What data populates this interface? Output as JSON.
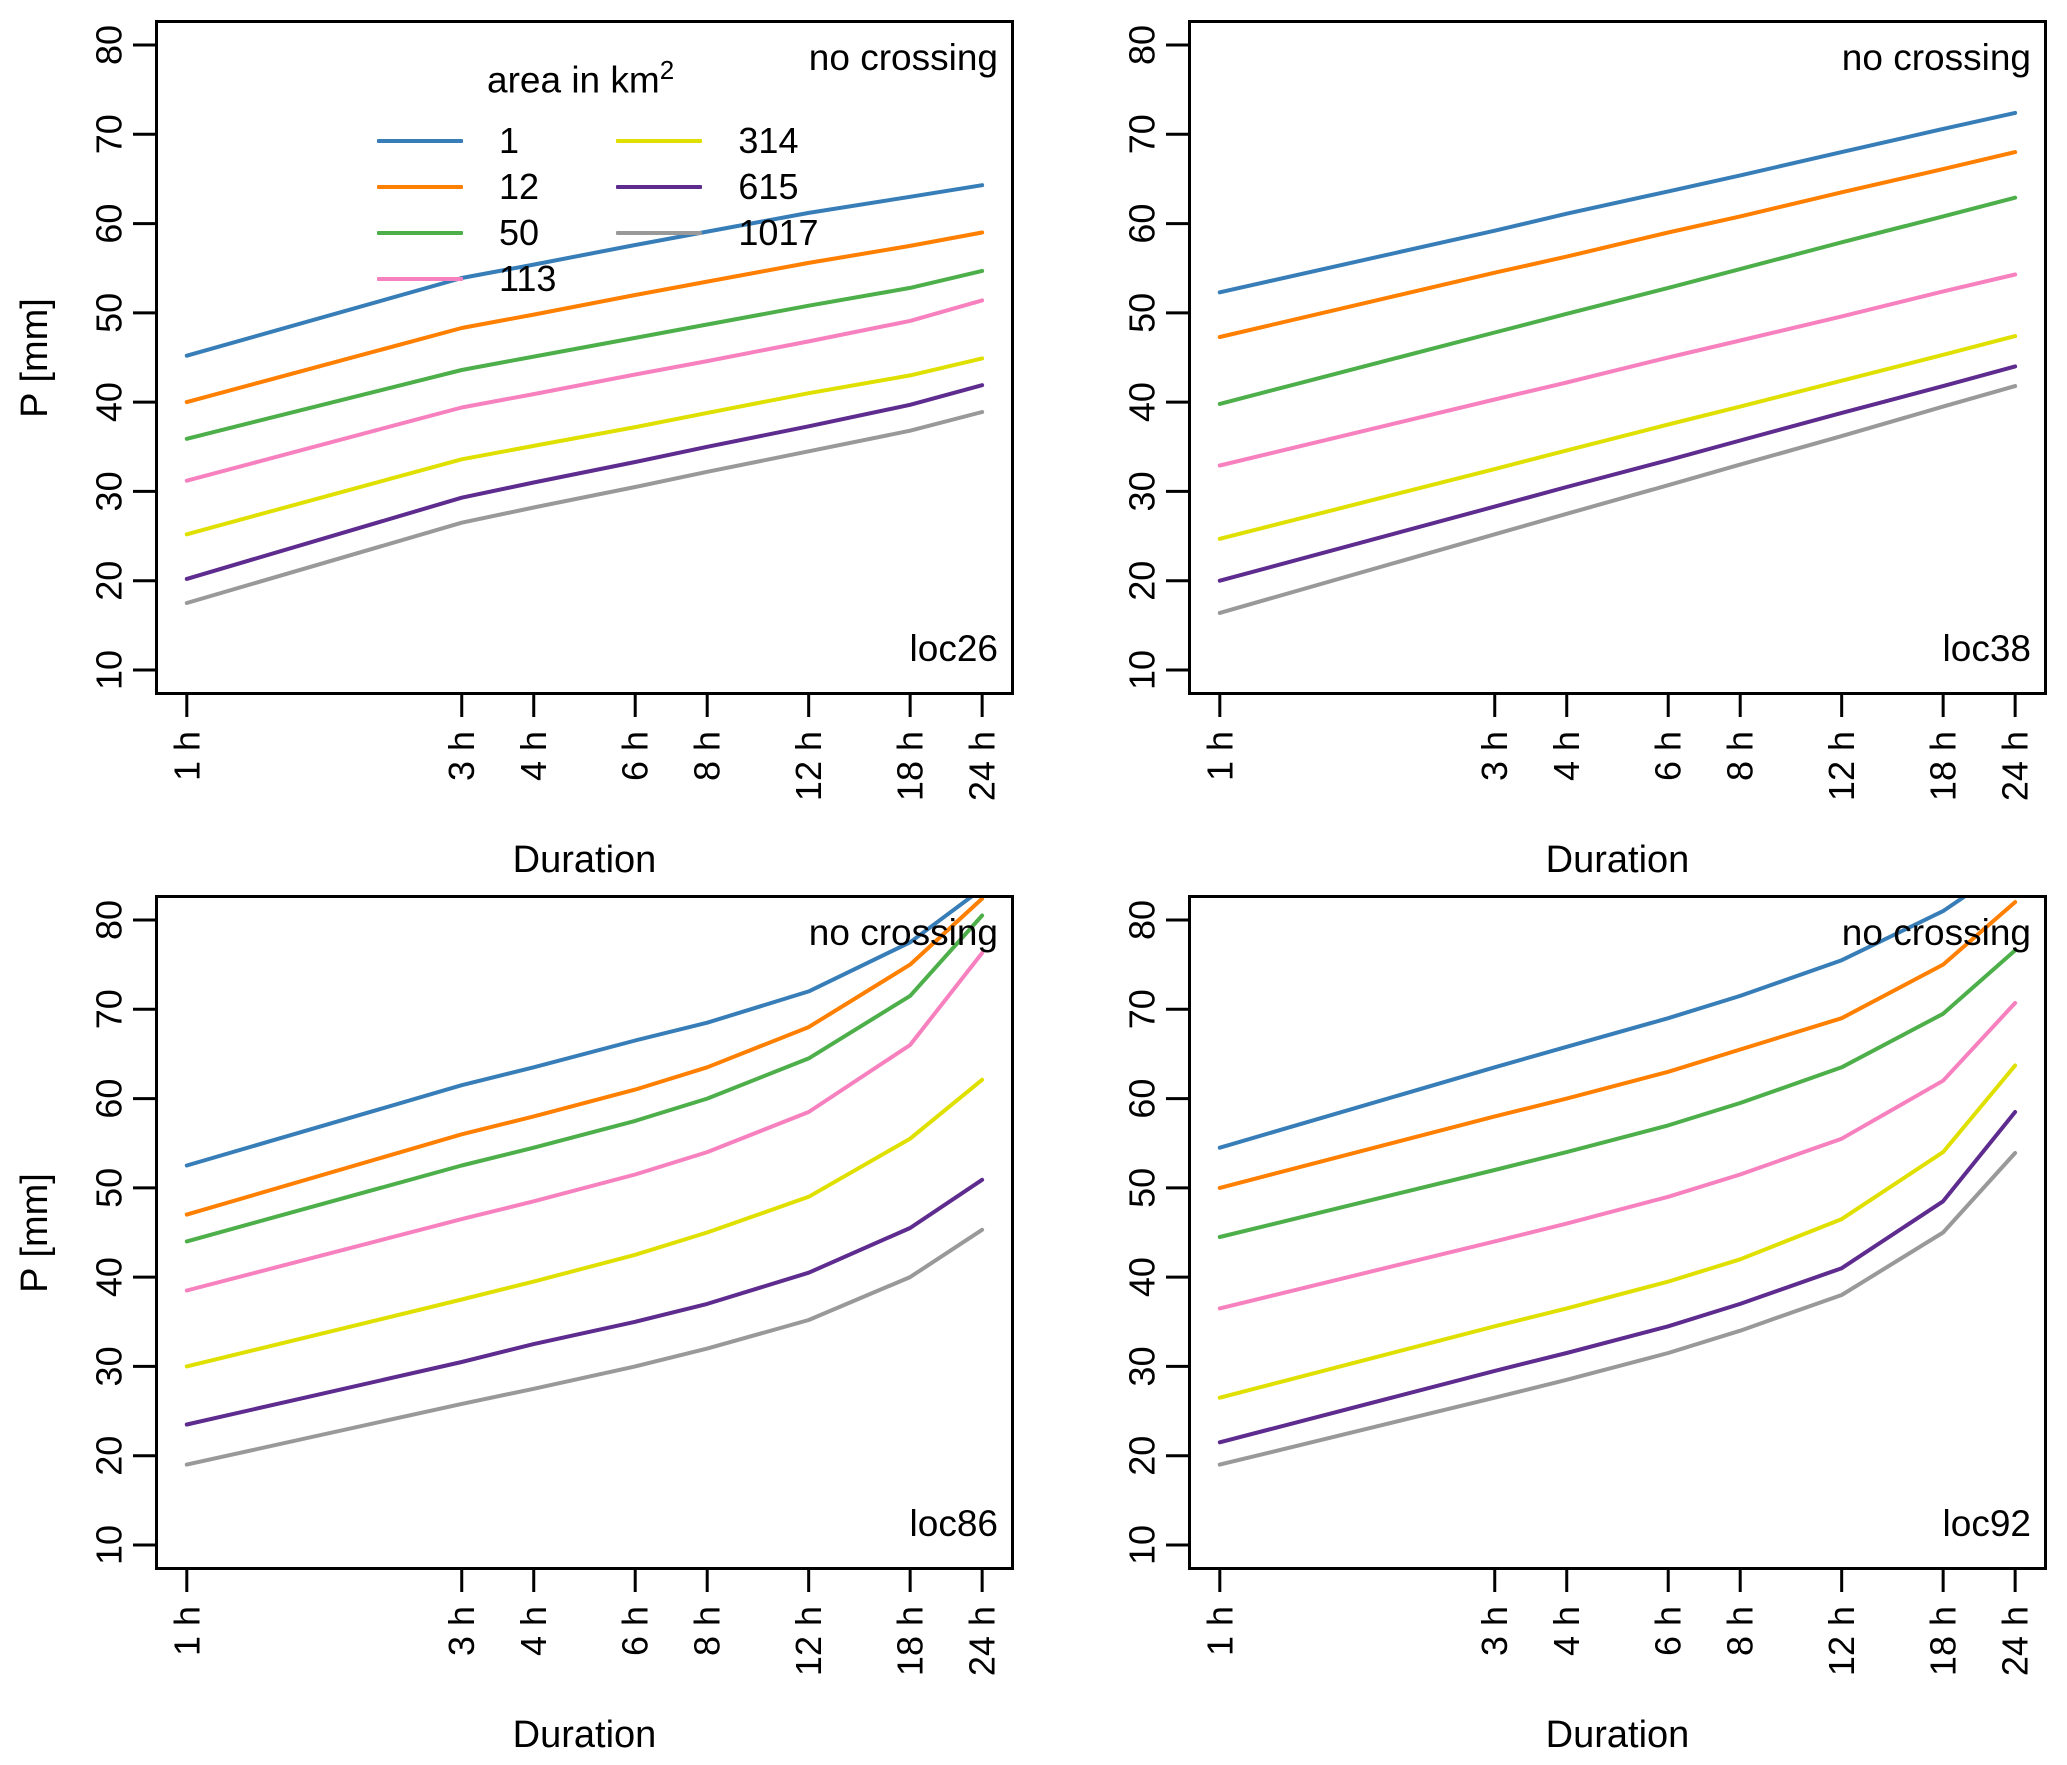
{
  "legend": {
    "title": "area in km",
    "title_sup": "2",
    "entries": [
      {
        "label": "1",
        "color": "#377EB8"
      },
      {
        "label": "12",
        "color": "#FF7F00"
      },
      {
        "label": "50",
        "color": "#4DAF4A"
      },
      {
        "label": "113",
        "color": "#F781BF"
      },
      {
        "label": "314",
        "color": "#E0E000"
      },
      {
        "label": "615",
        "color": "#5E2B8F"
      },
      {
        "label": "1017",
        "color": "#999999"
      }
    ]
  },
  "axes": {
    "x_tick_hours": [
      1,
      3,
      4,
      6,
      8,
      12,
      18,
      24
    ],
    "x_tick_labels": [
      "1 h",
      "3 h",
      "4 h",
      "6 h",
      "8 h",
      "12 h",
      "18 h",
      "24 h"
    ],
    "y_ticks": [
      10,
      20,
      30,
      40,
      50,
      60,
      70,
      80
    ],
    "ylim": [
      7.2,
      82.8
    ],
    "xscale": "log"
  },
  "chart_data": [
    {
      "type": "line",
      "title": "loc26",
      "annotation": "no crossing",
      "xlabel": "Duration",
      "ylabel": "P [mm]",
      "x": [
        1,
        3,
        4,
        6,
        8,
        12,
        18,
        24
      ],
      "x_tick_labels": [
        "1 h",
        "3 h",
        "4 h",
        "6 h",
        "8 h",
        "12 h",
        "18 h",
        "24 h"
      ],
      "ylim": [
        7.2,
        82.8
      ],
      "xscale": "log",
      "grid": false,
      "legend_position": "top-left",
      "series": [
        {
          "name": "1",
          "color": "#377EB8",
          "values": [
            45.2,
            53.9,
            55.4,
            57.6,
            59.1,
            61.2,
            63.0,
            64.3
          ]
        },
        {
          "name": "12",
          "color": "#FF7F00",
          "values": [
            40.0,
            48.3,
            49.8,
            52.0,
            53.5,
            55.6,
            57.5,
            59.0
          ]
        },
        {
          "name": "50",
          "color": "#4DAF4A",
          "values": [
            35.9,
            43.6,
            45.1,
            47.2,
            48.7,
            50.8,
            52.8,
            54.7
          ]
        },
        {
          "name": "113",
          "color": "#F781BF",
          "values": [
            31.2,
            39.4,
            40.9,
            43.1,
            44.6,
            46.8,
            49.1,
            51.4
          ]
        },
        {
          "name": "314",
          "color": "#E0E000",
          "values": [
            25.2,
            33.6,
            35.1,
            37.2,
            38.8,
            41.0,
            43.0,
            44.9
          ]
        },
        {
          "name": "615",
          "color": "#5E2B8F",
          "values": [
            20.2,
            29.3,
            31.0,
            33.3,
            35.0,
            37.3,
            39.7,
            41.9
          ]
        },
        {
          "name": "1017",
          "color": "#999999",
          "values": [
            17.5,
            26.5,
            28.2,
            30.5,
            32.2,
            34.5,
            36.8,
            38.9
          ]
        }
      ]
    },
    {
      "type": "line",
      "title": "loc38",
      "annotation": "no crossing",
      "xlabel": "Duration",
      "ylabel": "P [mm]",
      "x": [
        1,
        3,
        4,
        6,
        8,
        12,
        18,
        24
      ],
      "x_tick_labels": [
        "1 h",
        "3 h",
        "4 h",
        "6 h",
        "8 h",
        "12 h",
        "18 h",
        "24 h"
      ],
      "ylim": [
        7.2,
        82.8
      ],
      "xscale": "log",
      "grid": false,
      "series": [
        {
          "name": "1",
          "color": "#377EB8",
          "values": [
            52.3,
            59.2,
            61.1,
            63.6,
            65.4,
            68.0,
            70.6,
            72.4
          ]
        },
        {
          "name": "12",
          "color": "#FF7F00",
          "values": [
            47.3,
            54.5,
            56.3,
            59.0,
            60.8,
            63.5,
            66.1,
            68.0
          ]
        },
        {
          "name": "50",
          "color": "#4DAF4A",
          "values": [
            39.8,
            47.8,
            49.9,
            52.8,
            54.9,
            57.9,
            60.8,
            62.9
          ]
        },
        {
          "name": "113",
          "color": "#F781BF",
          "values": [
            32.9,
            40.3,
            42.2,
            45.0,
            46.9,
            49.6,
            52.4,
            54.3
          ]
        },
        {
          "name": "314",
          "color": "#E0E000",
          "values": [
            24.7,
            32.5,
            34.6,
            37.5,
            39.5,
            42.4,
            45.3,
            47.4
          ]
        },
        {
          "name": "615",
          "color": "#5E2B8F",
          "values": [
            20.0,
            28.3,
            30.5,
            33.5,
            35.7,
            38.8,
            41.8,
            44.0
          ]
        },
        {
          "name": "1017",
          "color": "#999999",
          "values": [
            16.4,
            25.2,
            27.5,
            30.7,
            33.0,
            36.2,
            39.5,
            41.8
          ]
        }
      ]
    },
    {
      "type": "line",
      "title": "loc86",
      "annotation": "no crossing",
      "xlabel": "Duration",
      "ylabel": "P [mm]",
      "x": [
        1,
        3,
        4,
        6,
        8,
        12,
        18,
        24
      ],
      "x_tick_labels": [
        "1 h",
        "3 h",
        "4 h",
        "6 h",
        "8 h",
        "12 h",
        "18 h",
        "24 h"
      ],
      "ylim": [
        7.2,
        82.8
      ],
      "xscale": "log",
      "grid": false,
      "series": [
        {
          "name": "1",
          "color": "#377EB8",
          "values": [
            52.5,
            61.5,
            63.5,
            66.5,
            68.5,
            72.0,
            77.5,
            83.5
          ]
        },
        {
          "name": "12",
          "color": "#FF7F00",
          "values": [
            47.0,
            56.0,
            58.0,
            61.0,
            63.5,
            68.0,
            75.0,
            82.4
          ]
        },
        {
          "name": "50",
          "color": "#4DAF4A",
          "values": [
            44.0,
            52.5,
            54.5,
            57.5,
            60.0,
            64.5,
            71.5,
            80.5
          ]
        },
        {
          "name": "113",
          "color": "#F781BF",
          "values": [
            38.5,
            46.5,
            48.5,
            51.5,
            54.0,
            58.5,
            66.0,
            76.3
          ]
        },
        {
          "name": "314",
          "color": "#E0E000",
          "values": [
            30.0,
            37.5,
            39.5,
            42.5,
            45.0,
            49.0,
            55.5,
            62.1
          ]
        },
        {
          "name": "615",
          "color": "#5E2B8F",
          "values": [
            23.5,
            30.5,
            32.5,
            35.0,
            37.0,
            40.5,
            45.5,
            50.9
          ]
        },
        {
          "name": "1017",
          "color": "#999999",
          "values": [
            19.0,
            25.8,
            27.5,
            30.0,
            32.0,
            35.2,
            40.0,
            45.3
          ]
        }
      ]
    },
    {
      "type": "line",
      "title": "loc92",
      "annotation": "no crossing",
      "xlabel": "Duration",
      "ylabel": "P [mm]",
      "x": [
        1,
        3,
        4,
        6,
        8,
        12,
        18,
        24
      ],
      "x_tick_labels": [
        "1 h",
        "3 h",
        "4 h",
        "6 h",
        "8 h",
        "12 h",
        "18 h",
        "24 h"
      ],
      "ylim": [
        7.2,
        82.8
      ],
      "xscale": "log",
      "grid": false,
      "series": [
        {
          "name": "1",
          "color": "#377EB8",
          "values": [
            54.5,
            63.5,
            65.8,
            69.0,
            71.5,
            75.5,
            81.0,
            86.5
          ]
        },
        {
          "name": "12",
          "color": "#FF7F00",
          "values": [
            50.0,
            58.0,
            60.0,
            63.0,
            65.5,
            69.0,
            75.0,
            82.0
          ]
        },
        {
          "name": "50",
          "color": "#4DAF4A",
          "values": [
            44.5,
            52.0,
            54.0,
            57.0,
            59.5,
            63.5,
            69.5,
            76.6
          ]
        },
        {
          "name": "113",
          "color": "#F781BF",
          "values": [
            36.5,
            44.0,
            46.0,
            49.0,
            51.5,
            55.5,
            62.0,
            70.7
          ]
        },
        {
          "name": "314",
          "color": "#E0E000",
          "values": [
            26.5,
            34.5,
            36.5,
            39.5,
            42.0,
            46.5,
            54.0,
            63.7
          ]
        },
        {
          "name": "615",
          "color": "#5E2B8F",
          "values": [
            21.5,
            29.5,
            31.5,
            34.5,
            37.0,
            41.0,
            48.5,
            58.5
          ]
        },
        {
          "name": "1017",
          "color": "#999999",
          "values": [
            19.0,
            26.5,
            28.5,
            31.5,
            34.0,
            38.0,
            45.0,
            53.9
          ]
        }
      ]
    }
  ]
}
